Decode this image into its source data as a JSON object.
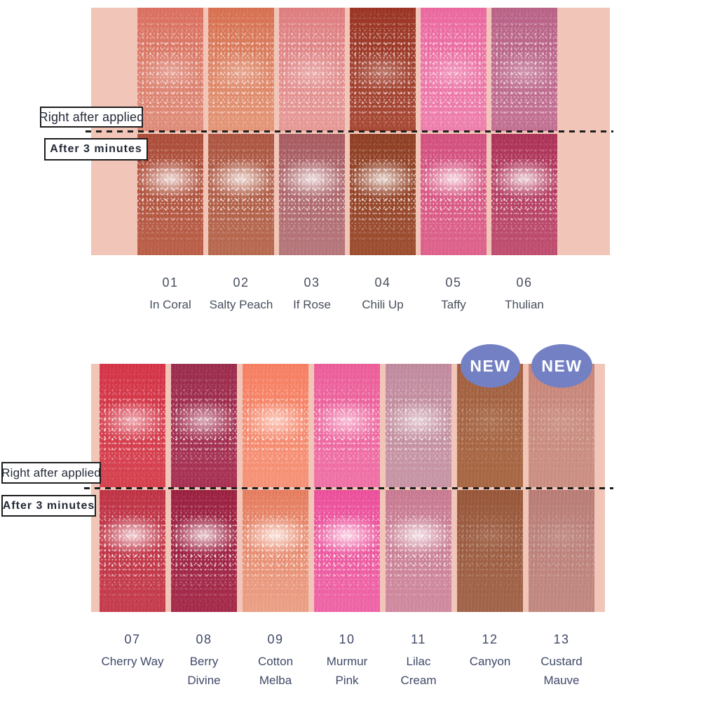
{
  "canvas": {
    "background": "#ffffff"
  },
  "panel": {
    "background": "#f1c6b8"
  },
  "divider_color": "#1e1e1e",
  "row_labels": {
    "applied": "Right after applied",
    "after": "After 3 minutes"
  },
  "new_badge": {
    "label": "NEW",
    "background": "#7380c4",
    "text_color": "#ffffff"
  },
  "text_colors": {
    "top_labels": "#474e5c",
    "bottom_labels": "#3f4a68",
    "row_label_text": "#232936"
  },
  "sections": [
    {
      "id": "shades-01-06",
      "shades": [
        {
          "number": "01",
          "name": "In Coral",
          "name_lines": [
            "In Coral"
          ],
          "applied": {
            "c1": "#dc6f5f",
            "c2": "#e18d79"
          },
          "after": {
            "c1": "#ac4c38",
            "c2": "#bc5f47"
          }
        },
        {
          "number": "02",
          "name": "Salty Peach",
          "name_lines": [
            "Salty Peach"
          ],
          "applied": {
            "c1": "#d86f4f",
            "c2": "#e69777"
          },
          "after": {
            "c1": "#ad5540",
            "c2": "#b96a4f"
          }
        },
        {
          "number": "03",
          "name": "If Rose",
          "name_lines": [
            "If Rose"
          ],
          "applied": {
            "c1": "#e07d80",
            "c2": "#e89b98"
          },
          "after": {
            "c1": "#a85a60",
            "c2": "#b7777b"
          }
        },
        {
          "number": "04",
          "name": "Chili Up",
          "name_lines": [
            "Chili Up"
          ],
          "applied": {
            "c1": "#9b3323",
            "c2": "#a84733"
          },
          "after": {
            "c1": "#8f3d22",
            "c2": "#9e4d2f"
          }
        },
        {
          "number": "05",
          "name": "Taffy",
          "name_lines": [
            "Taffy"
          ],
          "applied": {
            "c1": "#ed68a0",
            "c2": "#f07fae"
          },
          "after": {
            "c1": "#d44f7e",
            "c2": "#e0628d"
          }
        },
        {
          "number": "06",
          "name": "Thulian",
          "name_lines": [
            "Thulian"
          ],
          "applied": {
            "c1": "#b96287",
            "c2": "#c47093"
          },
          "after": {
            "c1": "#ad3057",
            "c2": "#c14e71"
          }
        }
      ]
    },
    {
      "id": "shades-07-13",
      "shades": [
        {
          "number": "07",
          "name": "Cherry Way",
          "name_lines": [
            "Cherry Way"
          ],
          "applied": {
            "c1": "#d63346",
            "c2": "#d8414f"
          },
          "after": {
            "c1": "#c03245",
            "c2": "#c73c4c"
          }
        },
        {
          "number": "08",
          "name": "Berry Divine",
          "name_lines": [
            "Berry",
            "Divine"
          ],
          "applied": {
            "c1": "#9c2b4d",
            "c2": "#a93154"
          },
          "after": {
            "c1": "#9c1f40",
            "c2": "#a62a4a"
          }
        },
        {
          "number": "09",
          "name": "Cotton Melba",
          "name_lines": [
            "Cotton",
            "Melba"
          ],
          "applied": {
            "c1": "#f97f62",
            "c2": "#f89478"
          },
          "after": {
            "c1": "#e87c5e",
            "c2": "#eda287"
          }
        },
        {
          "number": "10",
          "name": "Murmur Pink",
          "name_lines": [
            "Murmur",
            "Pink"
          ],
          "applied": {
            "c1": "#ee5d9a",
            "c2": "#f272a8"
          },
          "after": {
            "c1": "#ee4f9c",
            "c2": "#f165a7"
          }
        },
        {
          "number": "11",
          "name": "Lilac Cream",
          "name_lines": [
            "Lilac",
            "Cream"
          ],
          "applied": {
            "c1": "#c28b9f",
            "c2": "#c996a6"
          },
          "after": {
            "c1": "#ca7a93",
            "c2": "#d18ba0"
          }
        },
        {
          "number": "12",
          "name": "Canyon",
          "name_lines": [
            "Canyon"
          ],
          "applied": {
            "c1": "#a3603f",
            "c2": "#a96844"
          },
          "after": {
            "c1": "#99573a",
            "c2": "#a3654a"
          }
        },
        {
          "number": "13",
          "name": "Custard Mauve",
          "name_lines": [
            "Custard",
            "Mauve"
          ],
          "applied": {
            "c1": "#c98679",
            "c2": "#cd9184"
          },
          "after": {
            "c1": "#ba7d76",
            "c2": "#c38a82"
          }
        }
      ]
    }
  ]
}
